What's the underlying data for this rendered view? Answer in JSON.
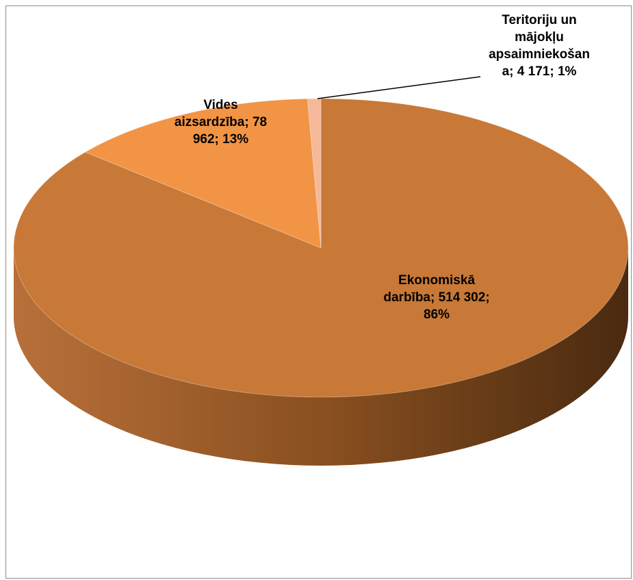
{
  "chart_data": {
    "type": "pie3d",
    "categories": [
      "Ekonomiskā darbība",
      "Vides aizsardzība",
      "Teritoriju un mājokļu apsaimniekošana"
    ],
    "values": [
      514302,
      78962,
      4171
    ],
    "value_labels": [
      "514 302",
      "78 962",
      "4 171"
    ],
    "percent_labels": [
      "86%",
      "13%",
      "1%"
    ],
    "label_separator": "; ",
    "colors": [
      "#c87937",
      "#f29446",
      "#f5b99a"
    ]
  }
}
